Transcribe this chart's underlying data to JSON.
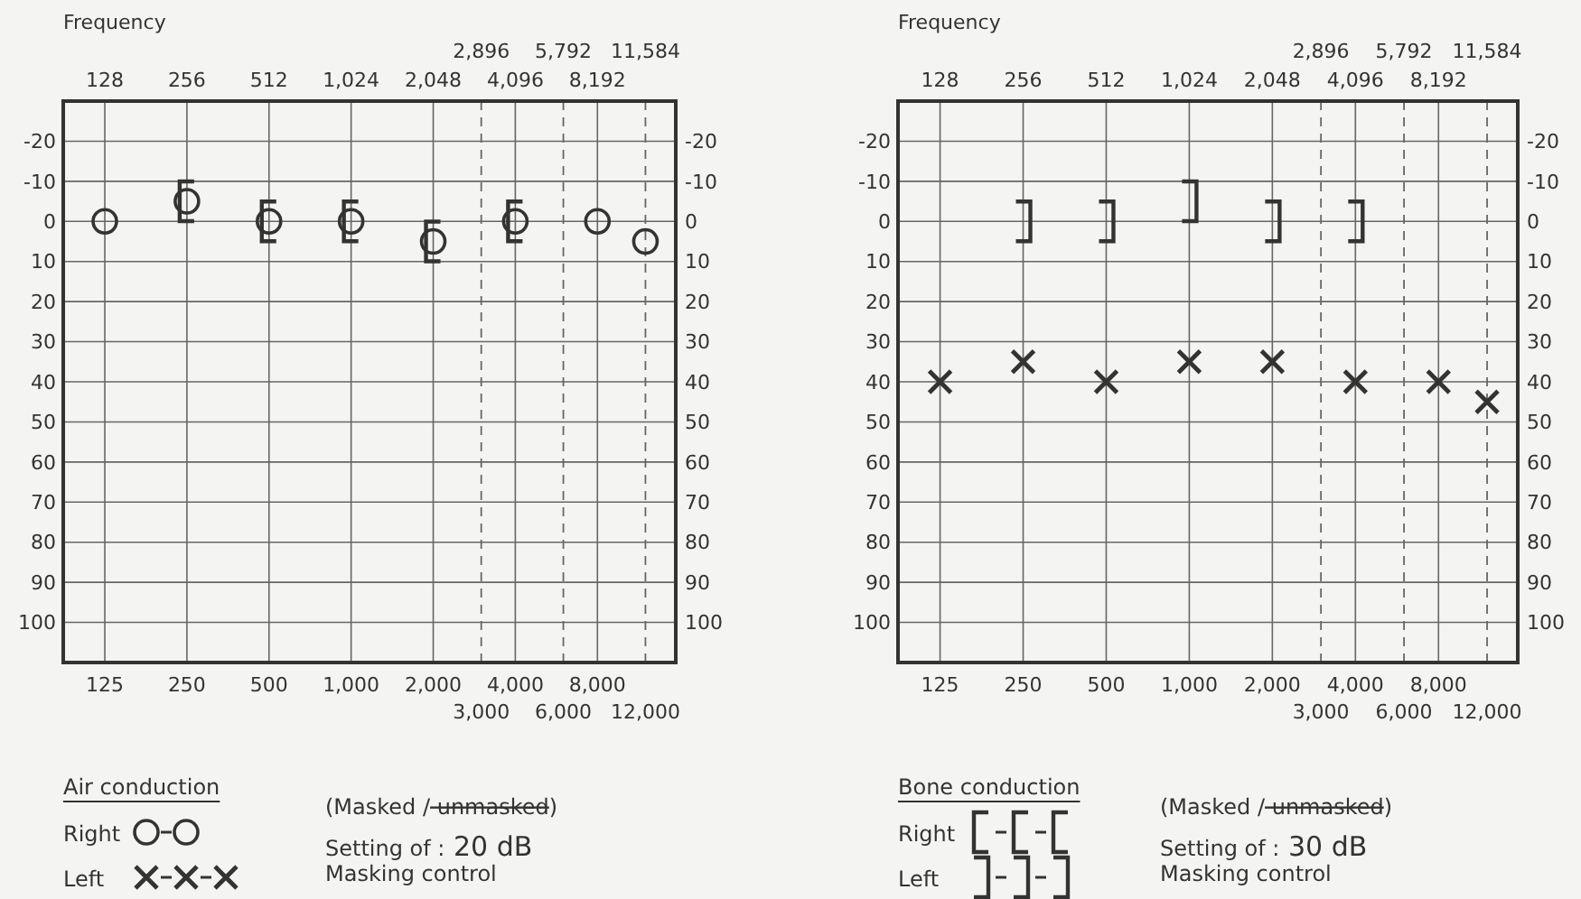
{
  "chart_data": [
    {
      "type": "scatter",
      "log": "x",
      "xlim": [
        88,
        15500
      ],
      "ylim": [
        110,
        -30
      ],
      "y2lim": [
        110,
        -30
      ],
      "xticks": [
        125,
        250,
        500,
        {
          "value": 1000,
          "label": "1,000"
        },
        {
          "value": 2000,
          "label": "2,000"
        },
        {
          "value": 4000,
          "label": "4,000"
        },
        {
          "value": 8000,
          "label": "8,000"
        }
      ],
      "yticks": [
        -20,
        -10,
        0,
        10,
        20,
        30,
        40,
        50,
        60,
        70,
        80,
        90,
        100
      ],
      "y2ticks": [
        -20,
        -10,
        0,
        10,
        20,
        30,
        40,
        50,
        60,
        70,
        80,
        90,
        100
      ],
      "grid": true,
      "ref_lines": [
        {
          "axis": "x",
          "value": 3000,
          "label": "3,000",
          "line_style": "dashed"
        },
        {
          "axis": "x",
          "value": 6000,
          "label": "6,000",
          "line_style": "dashed"
        },
        {
          "axis": "x",
          "value": 12000,
          "label": "12,000",
          "line_style": "dashed"
        }
      ],
      "series": [
        {
          "color": "#333333",
          "marker": "circle",
          "x": [
            125,
            250,
            500,
            1000,
            2000,
            4000,
            8000,
            12000
          ],
          "values": [
            0,
            -5,
            0,
            0,
            5,
            0,
            0,
            5
          ]
        },
        {
          "color": "#333333",
          "x": [
            250,
            500,
            1000,
            2000,
            4000
          ],
          "values": [
            -5,
            0,
            0,
            5,
            0
          ]
        }
      ],
      "annotations": [
        "Air conduction",
        "Right",
        "Left",
        "(Masked / unmasked)",
        "Setting of : 20 dB",
        "Masking control",
        "Frequency",
        "128",
        "256",
        "512",
        "1,024",
        "2,048",
        "4,096",
        "8,192",
        "2,896",
        "5,792",
        "11,584"
      ]
    },
    {
      "type": "scatter",
      "log": "x",
      "xlim": [
        88,
        15500
      ],
      "ylim": [
        110,
        -30
      ],
      "y2lim": [
        110,
        -30
      ],
      "xticks": [
        125,
        250,
        500,
        {
          "value": 1000,
          "label": "1,000"
        },
        {
          "value": 2000,
          "label": "2,000"
        },
        {
          "value": 4000,
          "label": "4,000"
        },
        {
          "value": 8000,
          "label": "8,000"
        }
      ],
      "yticks": [
        -20,
        -10,
        0,
        10,
        20,
        30,
        40,
        50,
        60,
        70,
        80,
        90,
        100
      ],
      "y2ticks": [
        -20,
        -10,
        0,
        10,
        20,
        30,
        40,
        50,
        60,
        70,
        80,
        90,
        100
      ],
      "grid": true,
      "ref_lines": [
        {
          "axis": "x",
          "value": 3000,
          "label": "3,000",
          "line_style": "dashed"
        },
        {
          "axis": "x",
          "value": 6000,
          "label": "6,000",
          "line_style": "dashed"
        },
        {
          "axis": "x",
          "value": 12000,
          "label": "12,000",
          "line_style": "dashed"
        }
      ],
      "series": [
        {
          "color": "#333333",
          "x": [
            250,
            500,
            1000,
            2000,
            4000
          ],
          "values": [
            0,
            0,
            -5,
            0,
            0
          ]
        },
        {
          "color": "#333333",
          "marker": "cross",
          "x": [
            125,
            250,
            500,
            1000,
            2000,
            4000,
            8000,
            12000
          ],
          "values": [
            40,
            35,
            40,
            35,
            35,
            40,
            40,
            45
          ]
        }
      ],
      "annotations": [
        "Bone conduction",
        "Right",
        "Left",
        "(Masked / unmasked)",
        "Setting of : 30 dB",
        "Masking control",
        "Frequency",
        "128",
        "256",
        "512",
        "1,024",
        "2,048",
        "4,096",
        "8,192",
        "2,896",
        "5,792",
        "11,584"
      ]
    }
  ]
}
